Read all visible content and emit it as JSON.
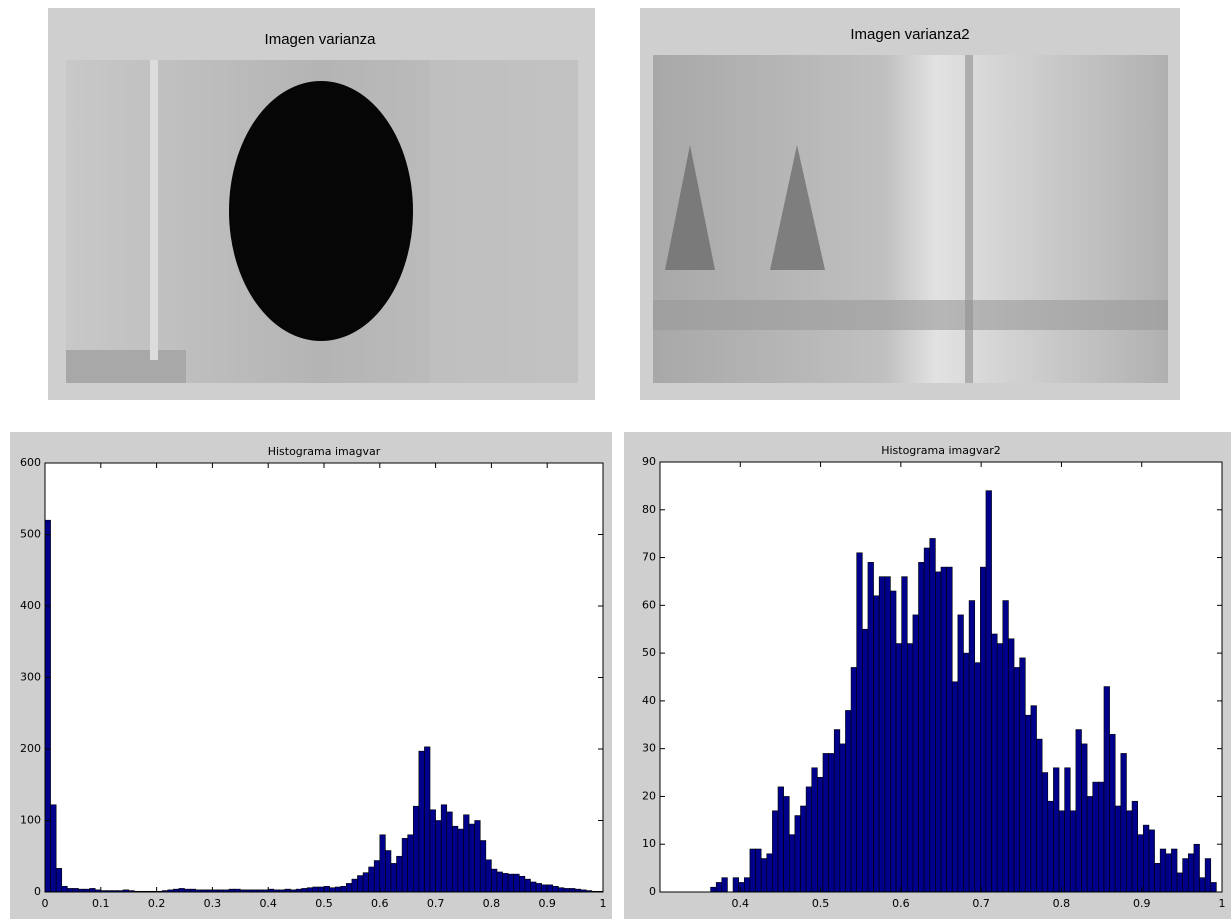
{
  "images": [
    {
      "title": "Imagen varianza"
    },
    {
      "title": "Imagen varianza2"
    }
  ],
  "chart_data": [
    {
      "type": "histogram",
      "title": "Histograma imagvar",
      "color": "#00008b",
      "bins": [
        0,
        0.01,
        0.02,
        0.03,
        0.04,
        0.05,
        0.06,
        0.07,
        0.08,
        0.09,
        0.1,
        0.11,
        0.12,
        0.13,
        0.14,
        0.15,
        0.16,
        0.17,
        0.18,
        0.19,
        0.2,
        0.21,
        0.22,
        0.23,
        0.24,
        0.25,
        0.26,
        0.27,
        0.28,
        0.29,
        0.3,
        0.31,
        0.32,
        0.33,
        0.34,
        0.35,
        0.36,
        0.37,
        0.38,
        0.39,
        0.4,
        0.41,
        0.42,
        0.43,
        0.44,
        0.45,
        0.46,
        0.47,
        0.48,
        0.49,
        0.5,
        0.51,
        0.52,
        0.53,
        0.54,
        0.55,
        0.56,
        0.57,
        0.58,
        0.59,
        0.6,
        0.61,
        0.62,
        0.63,
        0.64,
        0.65,
        0.66,
        0.67,
        0.68,
        0.69,
        0.7,
        0.71,
        0.72,
        0.73,
        0.74,
        0.75,
        0.76,
        0.77,
        0.78,
        0.79,
        0.8,
        0.81,
        0.82,
        0.83,
        0.84,
        0.85,
        0.86,
        0.87,
        0.88,
        0.89,
        0.9,
        0.91,
        0.92,
        0.93,
        0.94,
        0.95,
        0.96,
        0.97,
        0.98,
        0.99,
        1
      ],
      "values": [
        520,
        122,
        33,
        8,
        5,
        5,
        4,
        4,
        5,
        3,
        2,
        2,
        2,
        2,
        3,
        2,
        1,
        1,
        1,
        1,
        1,
        2,
        3,
        4,
        5,
        4,
        4,
        3,
        3,
        3,
        3,
        3,
        3,
        4,
        4,
        3,
        3,
        3,
        3,
        3,
        4,
        3,
        3,
        4,
        3,
        4,
        5,
        6,
        7,
        7,
        8,
        6,
        7,
        8,
        12,
        18,
        23,
        27,
        35,
        44,
        80,
        58,
        40,
        50,
        75,
        80,
        120,
        197,
        203,
        115,
        100,
        122,
        112,
        92,
        88,
        108,
        95,
        100,
        72,
        45,
        32,
        28,
        26,
        25,
        25,
        22,
        18,
        14,
        12,
        10,
        10,
        8,
        6,
        5,
        5,
        4,
        3,
        2,
        1,
        1
      ],
      "xlim": [
        0,
        1
      ],
      "xticks": [
        0,
        0.1,
        0.2,
        0.3,
        0.4,
        0.5,
        0.6,
        0.7,
        0.8,
        0.9,
        1
      ],
      "ylim": [
        0,
        600
      ],
      "yticks": [
        0,
        100,
        200,
        300,
        400,
        500,
        600
      ]
    },
    {
      "type": "histogram",
      "title": "Histograma imagvar2",
      "color": "#00008b",
      "bins": [
        0.3,
        0.307,
        0.314,
        0.321,
        0.328,
        0.335,
        0.342,
        0.349,
        0.356,
        0.363,
        0.37,
        0.377,
        0.384,
        0.391,
        0.398,
        0.405,
        0.412,
        0.419,
        0.426,
        0.433,
        0.44,
        0.447,
        0.454,
        0.461,
        0.468,
        0.475,
        0.482,
        0.489,
        0.496,
        0.503,
        0.51,
        0.517,
        0.524,
        0.531,
        0.538,
        0.545,
        0.552,
        0.559,
        0.566,
        0.573,
        0.58,
        0.587,
        0.594,
        0.601,
        0.608,
        0.615,
        0.622,
        0.629,
        0.636,
        0.643,
        0.65,
        0.657,
        0.664,
        0.671,
        0.678,
        0.685,
        0.692,
        0.699,
        0.706,
        0.713,
        0.72,
        0.727,
        0.734,
        0.741,
        0.748,
        0.755,
        0.762,
        0.769,
        0.776,
        0.783,
        0.79,
        0.797,
        0.804,
        0.811,
        0.818,
        0.825,
        0.832,
        0.839,
        0.846,
        0.853,
        0.86,
        0.867,
        0.874,
        0.881,
        0.888,
        0.895,
        0.902,
        0.909,
        0.916,
        0.923,
        0.93,
        0.937,
        0.944,
        0.951,
        0.958,
        0.965,
        0.972,
        0.979,
        0.986,
        0.993,
        1
      ],
      "values": [
        0,
        0,
        0,
        0,
        0,
        0,
        0,
        0,
        0,
        1,
        2,
        3,
        0,
        3,
        2,
        3,
        9,
        9,
        7,
        8,
        17,
        22,
        20,
        12,
        16,
        18,
        22,
        26,
        24,
        29,
        29,
        34,
        31,
        38,
        47,
        71,
        55,
        69,
        62,
        66,
        66,
        63,
        52,
        66,
        52,
        58,
        69,
        72,
        74,
        67,
        68,
        68,
        44,
        58,
        50,
        61,
        48,
        68,
        84,
        54,
        52,
        61,
        53,
        47,
        49,
        37,
        39,
        32,
        25,
        19,
        26,
        17,
        26,
        17,
        34,
        31,
        20,
        23,
        23,
        43,
        33,
        18,
        29,
        17,
        19,
        12,
        14,
        13,
        6,
        9,
        8,
        9,
        4,
        7,
        8,
        10,
        3,
        7,
        2,
        0
      ],
      "xlim": [
        0.3,
        1
      ],
      "xticks": [
        0.4,
        0.5,
        0.6,
        0.7,
        0.8,
        0.9,
        1
      ],
      "ylim": [
        0,
        90
      ],
      "yticks": [
        0,
        10,
        20,
        30,
        40,
        50,
        60,
        70,
        80,
        90
      ]
    }
  ]
}
